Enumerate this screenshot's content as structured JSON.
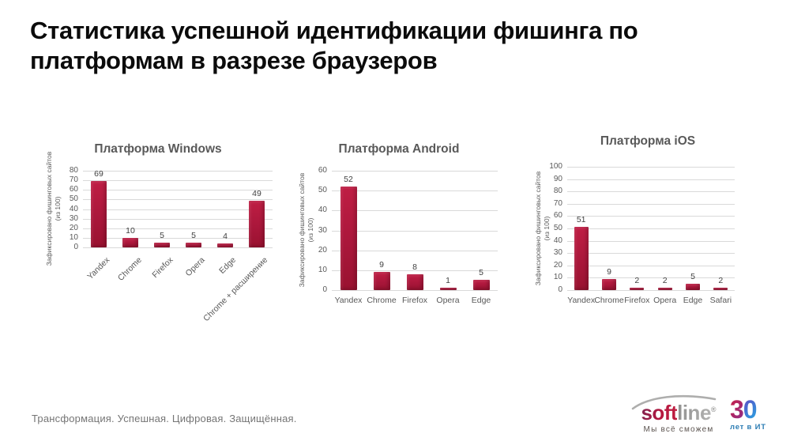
{
  "slide": {
    "title": "Статистика успешной идентификации фишинга по платформам в разрезе браузеров",
    "footer_text": "Трансформация. Успешная. Цифровая. Защищённая."
  },
  "logo": {
    "brand_soft": "soft",
    "brand_line": "line",
    "registered_mark": "®",
    "tagline": "Мы всё сможем",
    "anniversary_digit_1": "3",
    "anniversary_digit_2": "0",
    "anniversary_caption": "лет в ИТ"
  },
  "colors": {
    "bar": "#a8163a",
    "chart_text": "#595959",
    "gridline": "#d9d9d9",
    "title_text": "#0b0b0b",
    "footer_text": "#757575",
    "brand_red": "#a81e3e",
    "brand_gray": "#9d9d9c",
    "anniversary_blue": "#2d7db4"
  },
  "chart_data": [
    {
      "type": "bar",
      "title": "Платформа Windows",
      "ylabel": "Зафиксировано фишинговых сайтов",
      "ylabel_line2": "(из 100)",
      "categories": [
        "Yandex",
        "Chrome",
        "Firefox",
        "Opera",
        "Edge",
        "Chrome + расширение"
      ],
      "values": [
        69,
        10,
        5,
        5,
        4,
        49
      ],
      "ylim": [
        0,
        80
      ],
      "ytick_step": 10,
      "xlabel_rotation": -45,
      "grid": true,
      "legend": false
    },
    {
      "type": "bar",
      "title": "Платформа Android",
      "ylabel": "Зафиксировано фишинговых сайтов",
      "ylabel_line2": "(из 100)",
      "categories": [
        "Yandex",
        "Chrome",
        "Firefox",
        "Opera",
        "Edge"
      ],
      "values": [
        52,
        9,
        8,
        1,
        5
      ],
      "ylim": [
        0,
        60
      ],
      "ytick_step": 10,
      "xlabel_rotation": 0,
      "grid": true,
      "legend": false
    },
    {
      "type": "bar",
      "title": "Платформа iOS",
      "ylabel": "Зафиксировано фишинговых сайтов",
      "ylabel_line2": "(из 100)",
      "categories": [
        "Yandex",
        "Chrome",
        "Firefox",
        "Opera",
        "Edge",
        "Safari"
      ],
      "values": [
        51,
        9,
        2,
        2,
        5,
        2
      ],
      "ylim": [
        0,
        100
      ],
      "ytick_step": 10,
      "xlabel_rotation": 0,
      "grid": true,
      "legend": false
    }
  ]
}
